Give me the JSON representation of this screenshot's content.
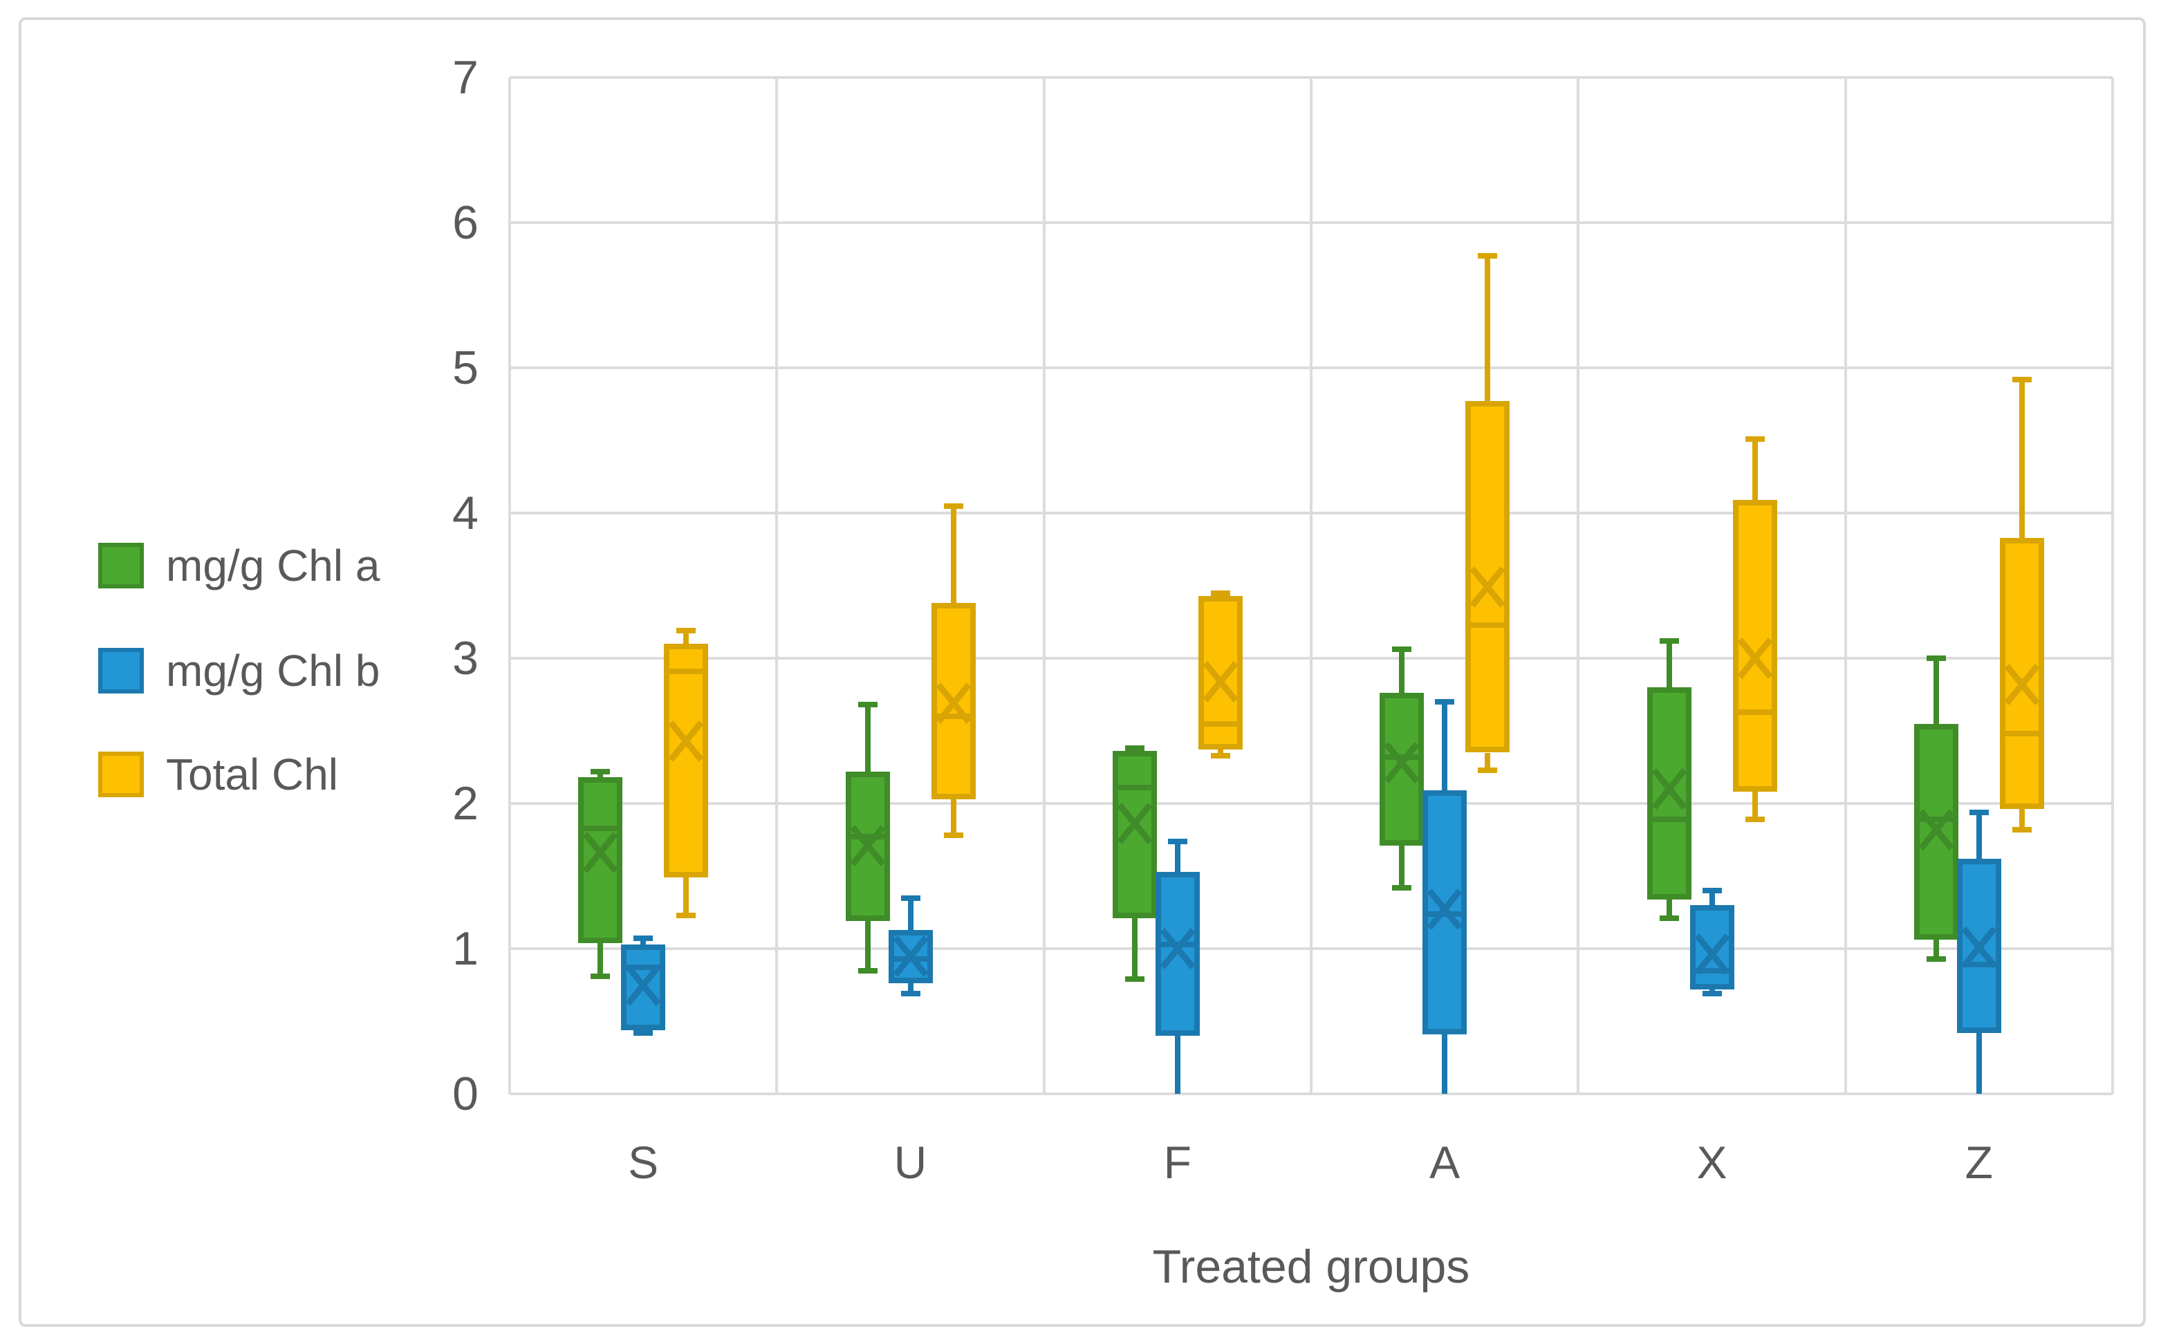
{
  "axis": {
    "y_ticks": [
      "0",
      "1",
      "2",
      "3",
      "4",
      "5",
      "6",
      "7"
    ],
    "ylim": [
      0,
      7
    ],
    "x_title": "Treated groups",
    "grid_color": "#dcdcdc",
    "text_color": "#595959"
  },
  "legend": {
    "position": "left",
    "items": [
      {
        "label": "mg/g Chl a",
        "fill": "#4ba930",
        "border": "#3f8c28"
      },
      {
        "label": "mg/g Chl b",
        "fill": "#2397d5",
        "border": "#1b79af"
      },
      {
        "label": "Total Chl",
        "fill": "#fdc101",
        "border": "#d9a504"
      }
    ]
  },
  "chart_data": {
    "type": "box",
    "title": "",
    "xlabel": "Treated groups",
    "ylabel": "",
    "ylim": [
      0,
      7
    ],
    "grid": true,
    "categories": [
      "S",
      "U",
      "F",
      "A",
      "X",
      "Z"
    ],
    "series": [
      {
        "name": "mg/g Chl a",
        "fill": "#4ba930",
        "border": "#3f8c28",
        "stats": [
          {
            "min": 0.81,
            "q1": 1.04,
            "median": 1.83,
            "q3": 2.18,
            "max": 2.22,
            "mean": 1.66
          },
          {
            "min": 0.85,
            "q1": 1.19,
            "median": 1.77,
            "q3": 2.22,
            "max": 2.68,
            "mean": 1.71
          },
          {
            "min": 0.79,
            "q1": 1.21,
            "median": 2.11,
            "q3": 2.36,
            "max": 2.38,
            "mean": 1.86
          },
          {
            "min": 1.42,
            "q1": 1.71,
            "median": 2.32,
            "q3": 2.76,
            "max": 3.06,
            "mean": 2.28
          },
          {
            "min": 1.21,
            "q1": 1.34,
            "median": 1.89,
            "q3": 2.8,
            "max": 3.12,
            "mean": 2.1
          },
          {
            "min": 0.93,
            "q1": 1.06,
            "median": 1.89,
            "q3": 2.55,
            "max": 3.0,
            "mean": 1.82
          }
        ]
      },
      {
        "name": "mg/g Chl b",
        "fill": "#2397d5",
        "border": "#1b79af",
        "stats": [
          {
            "min": 0.42,
            "q1": 0.44,
            "median": 0.87,
            "q3": 1.03,
            "max": 1.07,
            "mean": 0.75
          },
          {
            "min": 0.69,
            "q1": 0.76,
            "median": 0.93,
            "q3": 1.13,
            "max": 1.35,
            "mean": 0.95
          },
          {
            "min": 0.0,
            "q1": 0.4,
            "median": 1.03,
            "q3": 1.53,
            "max": 1.74,
            "mean": 1.0
          },
          {
            "min": 0.0,
            "q1": 0.41,
            "median": 1.24,
            "q3": 2.09,
            "max": 2.7,
            "mean": 1.27
          },
          {
            "min": 0.69,
            "q1": 0.72,
            "median": 0.85,
            "q3": 1.3,
            "max": 1.4,
            "mean": 0.96
          },
          {
            "min": 0.0,
            "q1": 0.42,
            "median": 0.89,
            "q3": 1.62,
            "max": 1.94,
            "mean": 1.01
          }
        ]
      },
      {
        "name": "Total Chl",
        "fill": "#fdc101",
        "border": "#d9a504",
        "stats": [
          {
            "min": 1.23,
            "q1": 1.49,
            "median": 2.91,
            "q3": 3.1,
            "max": 3.19,
            "mean": 2.43
          },
          {
            "min": 1.78,
            "q1": 2.03,
            "median": 2.6,
            "q3": 3.38,
            "max": 4.05,
            "mean": 2.69
          },
          {
            "min": 2.33,
            "q1": 2.37,
            "median": 2.55,
            "q3": 3.43,
            "max": 3.45,
            "mean": 2.84
          },
          {
            "min": 2.23,
            "q1": 2.35,
            "median": 3.23,
            "q3": 4.77,
            "max": 5.77,
            "mean": 3.49
          },
          {
            "min": 1.89,
            "q1": 2.08,
            "median": 2.63,
            "q3": 4.09,
            "max": 4.51,
            "mean": 3.0
          },
          {
            "min": 1.82,
            "q1": 1.96,
            "median": 2.48,
            "q3": 3.83,
            "max": 4.92,
            "mean": 2.82
          }
        ]
      }
    ]
  }
}
